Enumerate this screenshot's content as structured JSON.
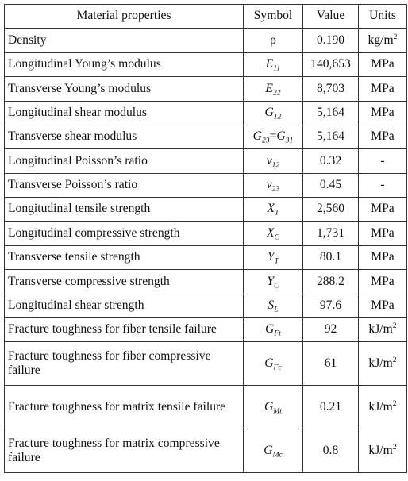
{
  "table": {
    "header": [
      "Material properties",
      "Symbol",
      "Value",
      "Units"
    ],
    "rows": [
      {
        "name": "Density",
        "symbol": [
          {
            "t": "ρ"
          }
        ],
        "value": "0.190",
        "unit": {
          "t": "kg/m",
          "sup": "2"
        }
      },
      {
        "name": "Longitudinal Young’s modulus",
        "symbol": [
          {
            "t": "E",
            "sub": "11"
          }
        ],
        "value": "140,653",
        "unit": {
          "t": "MPa"
        }
      },
      {
        "name": "Transverse Young’s modulus",
        "symbol": [
          {
            "t": "E",
            "sub": "22"
          }
        ],
        "value": "8,703",
        "unit": {
          "t": "MPa"
        }
      },
      {
        "name": "Longitudinal shear modulus",
        "symbol": [
          {
            "t": "G",
            "sub": "12"
          }
        ],
        "value": "5,164",
        "unit": {
          "t": "MPa"
        }
      },
      {
        "name": "Transverse shear modulus",
        "symbol": [
          {
            "t": "G",
            "sub": "23"
          },
          {
            "t": "="
          },
          {
            "t": "G",
            "sub": "31"
          }
        ],
        "value": "5,164",
        "unit": {
          "t": "MPa"
        }
      },
      {
        "name": "Longitudinal Poisson’s ratio",
        "symbol": [
          {
            "t": "ν",
            "sub": "12"
          }
        ],
        "value": "0.32",
        "unit": {
          "t": "-"
        }
      },
      {
        "name": "Transverse Poisson’s ratio",
        "symbol": [
          {
            "t": "ν",
            "sub": "23"
          }
        ],
        "value": "0.45",
        "unit": {
          "t": "-"
        }
      },
      {
        "name": "Longitudinal tensile strength",
        "symbol": [
          {
            "t": "X",
            "sub": "T"
          }
        ],
        "value": "2,560",
        "unit": {
          "t": "MPa"
        }
      },
      {
        "name": "Longitudinal compressive strength",
        "symbol": [
          {
            "t": "X",
            "sub": "C"
          }
        ],
        "value": "1,731",
        "unit": {
          "t": "MPa"
        }
      },
      {
        "name": "Transverse tensile strength",
        "symbol": [
          {
            "t": "Y",
            "sub": "T"
          }
        ],
        "value": "80.1",
        "unit": {
          "t": "MPa"
        }
      },
      {
        "name": "Transverse compressive strength",
        "symbol": [
          {
            "t": "Y",
            "sub": "C"
          }
        ],
        "value": "288.2",
        "unit": {
          "t": "MPa"
        }
      },
      {
        "name": "Longitudinal shear strength",
        "symbol": [
          {
            "t": "S",
            "sub": "L"
          }
        ],
        "value": "97.6",
        "unit": {
          "t": "MPa"
        }
      },
      {
        "name": "Fracture toughness for fiber tensile failure",
        "symbol": [
          {
            "t": "G",
            "sub": "Ft"
          }
        ],
        "value": "92",
        "unit": {
          "t": "kJ/m",
          "sup": "2"
        }
      },
      {
        "name": "Fracture toughness for fiber compressive failure",
        "symbol": [
          {
            "t": "G",
            "sub": "Fc"
          }
        ],
        "value": "61",
        "unit": {
          "t": "kJ/m",
          "sup": "2"
        }
      },
      {
        "name": "Fracture toughness for matrix tensile failure",
        "symbol": [
          {
            "t": "G",
            "sub": "Mt"
          }
        ],
        "value": "0.21",
        "unit": {
          "t": "kJ/m",
          "sup": "2"
        }
      },
      {
        "name": "Fracture toughness for matrix compressive failure",
        "symbol": [
          {
            "t": "G",
            "sub": "Mc"
          }
        ],
        "value": "0.8",
        "unit": {
          "t": "kJ/m",
          "sup": "2"
        }
      }
    ]
  }
}
